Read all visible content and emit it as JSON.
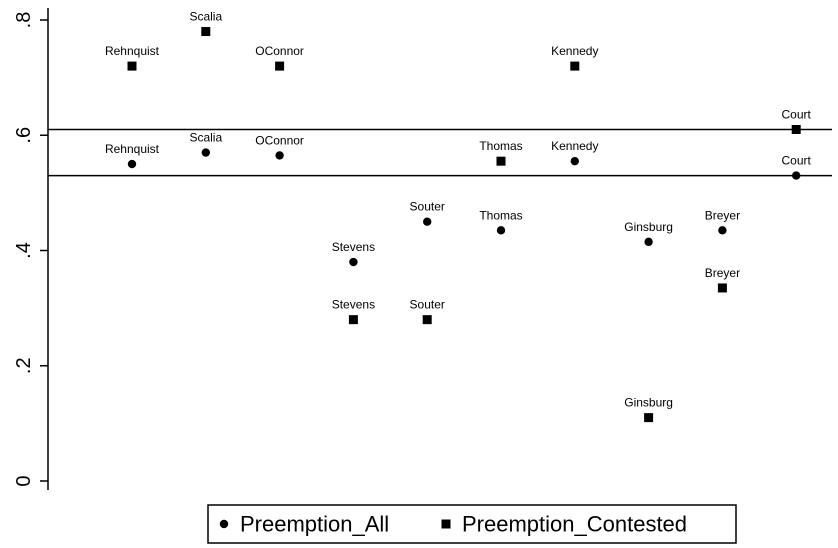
{
  "chart_data": {
    "type": "scatter",
    "title": "",
    "xlabel": "",
    "ylabel": "",
    "ylim": [
      0,
      0.8
    ],
    "y_ticks": [
      {
        "value": 0,
        "label": "0"
      },
      {
        "value": 0.2,
        "label": ".2"
      },
      {
        "value": 0.4,
        "label": ".4"
      },
      {
        "value": 0.6,
        "label": ".6"
      },
      {
        "value": 0.8,
        "label": ".8"
      }
    ],
    "grid": false,
    "legend_position": "bottom",
    "reference_lines": [
      {
        "series": "Preemption_Contested",
        "y": 0.61
      },
      {
        "series": "Preemption_All",
        "y": 0.53
      }
    ],
    "series": [
      {
        "name": "Preemption_All",
        "marker": "circle",
        "points": [
          {
            "label": "Rehnquist",
            "pos": 1,
            "y": 0.55
          },
          {
            "label": "Scalia",
            "pos": 2,
            "y": 0.57
          },
          {
            "label": "OConnor",
            "pos": 3,
            "y": 0.565
          },
          {
            "label": "Stevens",
            "pos": 4,
            "y": 0.38
          },
          {
            "label": "Souter",
            "pos": 5,
            "y": 0.45
          },
          {
            "label": "Thomas",
            "pos": 6,
            "y": 0.435
          },
          {
            "label": "Kennedy",
            "pos": 7,
            "y": 0.555
          },
          {
            "label": "Ginsburg",
            "pos": 8,
            "y": 0.415
          },
          {
            "label": "Breyer",
            "pos": 9,
            "y": 0.435
          },
          {
            "label": "Court",
            "pos": 10,
            "y": 0.53
          }
        ]
      },
      {
        "name": "Preemption_Contested",
        "marker": "square",
        "points": [
          {
            "label": "Rehnquist",
            "pos": 1,
            "y": 0.72
          },
          {
            "label": "Scalia",
            "pos": 2,
            "y": 0.78
          },
          {
            "label": "OConnor",
            "pos": 3,
            "y": 0.72
          },
          {
            "label": "Stevens",
            "pos": 4,
            "y": 0.28
          },
          {
            "label": "Souter",
            "pos": 5,
            "y": 0.28
          },
          {
            "label": "Thomas",
            "pos": 6,
            "y": 0.555
          },
          {
            "label": "Kennedy",
            "pos": 7,
            "y": 0.72
          },
          {
            "label": "Ginsburg",
            "pos": 8,
            "y": 0.11
          },
          {
            "label": "Breyer",
            "pos": 9,
            "y": 0.335
          },
          {
            "label": "Court",
            "pos": 10,
            "y": 0.61
          }
        ]
      }
    ],
    "colors": {
      "marks": "#000000",
      "background": "#ffffff"
    }
  }
}
